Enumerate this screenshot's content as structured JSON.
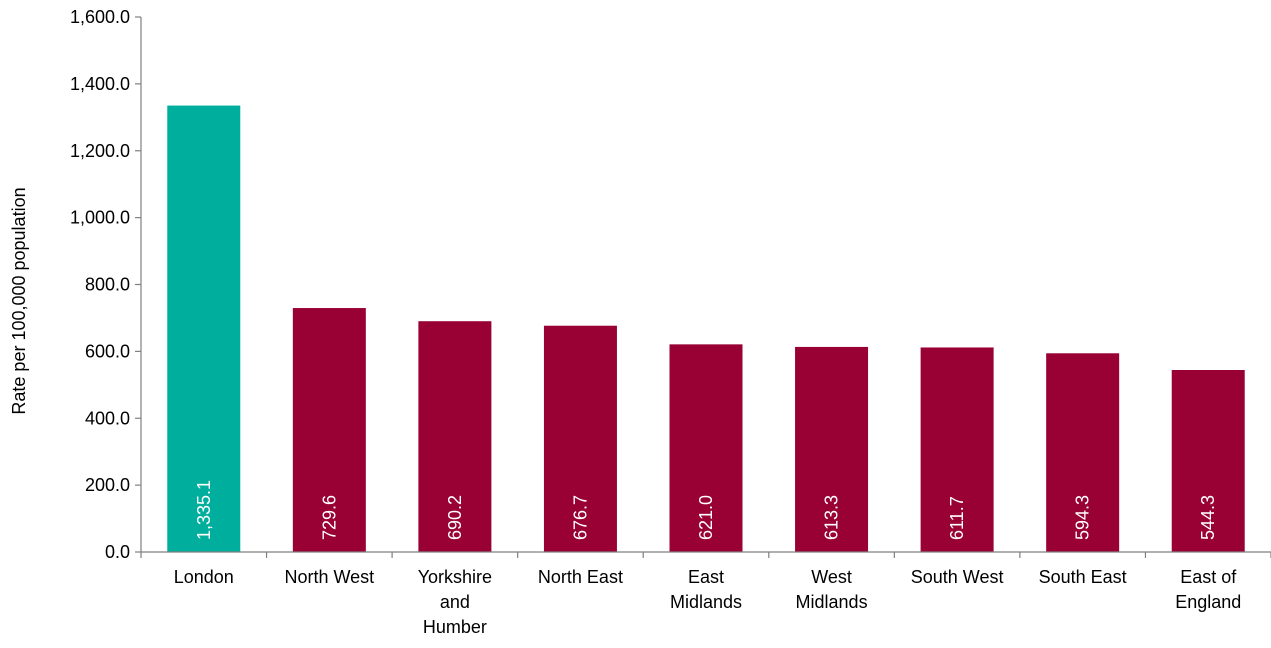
{
  "chart_data": {
    "type": "bar",
    "categories": [
      "London",
      "North West",
      "Yorkshire and Humber",
      "North East",
      "East Midlands",
      "West Midlands",
      "South West",
      "South East",
      "East of England"
    ],
    "category_label_lines": [
      [
        "London"
      ],
      [
        "North West"
      ],
      [
        "Yorkshire",
        "and",
        "Humber"
      ],
      [
        "North East"
      ],
      [
        "East",
        "Midlands"
      ],
      [
        "West",
        "Midlands"
      ],
      [
        "South West"
      ],
      [
        "South East"
      ],
      [
        "East of",
        "England"
      ]
    ],
    "values": [
      1335.1,
      729.6,
      690.2,
      676.7,
      621.0,
      613.3,
      611.7,
      594.3,
      544.3
    ],
    "data_labels": [
      "1,335.1",
      "729.6",
      "690.2",
      "676.7",
      "621.0",
      "613.3",
      "611.7",
      "594.3",
      "544.3"
    ],
    "highlight_index": 0,
    "colors": {
      "highlight": "#00ae9e",
      "default": "#990033",
      "axis": "#808080"
    },
    "title": "",
    "xlabel": "",
    "ylabel": "Rate per 100,000 population",
    "ylim": [
      0,
      1600
    ],
    "yticks": [
      0,
      200,
      400,
      600,
      800,
      1000,
      1200,
      1400,
      1600
    ],
    "ytick_labels": [
      "0.0",
      "200.0",
      "400.0",
      "600.0",
      "800.0",
      "1,000.0",
      "1,200.0",
      "1,400.0",
      "1,600.0"
    ],
    "grid": false,
    "legend": "none"
  }
}
